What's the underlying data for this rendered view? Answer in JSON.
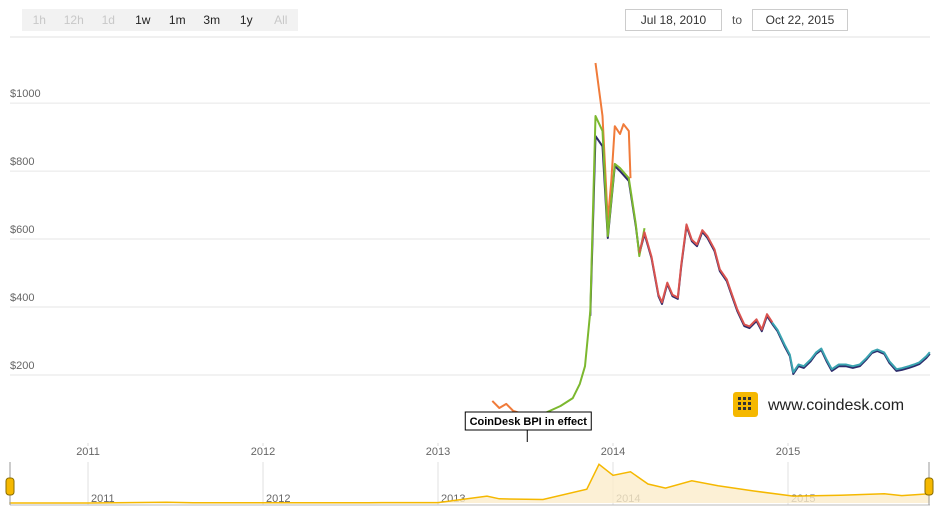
{
  "toolbar": {
    "buttons": [
      {
        "label": "1h",
        "enabled": false
      },
      {
        "label": "12h",
        "enabled": false
      },
      {
        "label": "1d",
        "enabled": false
      },
      {
        "label": "1w",
        "enabled": true
      },
      {
        "label": "1m",
        "enabled": true
      },
      {
        "label": "3m",
        "enabled": true
      },
      {
        "label": "1y",
        "enabled": true
      },
      {
        "label": "All",
        "enabled": false
      }
    ],
    "from": "Jul 18, 2010",
    "to_label": "to",
    "to": "Oct 22, 2015"
  },
  "watermark": "www.coindesk.com",
  "chart_data": [
    {
      "type": "line",
      "xlim": [
        2010.545,
        2015.81
      ],
      "ylim": [
        0,
        1168
      ],
      "grid": true,
      "xticks": [
        2011,
        2012,
        2013,
        2014,
        2015
      ],
      "yticks": [
        {
          "value": 200,
          "label": "$200"
        },
        {
          "value": 400,
          "label": "$400"
        },
        {
          "value": 600,
          "label": "$600"
        },
        {
          "value": 800,
          "label": "$800"
        },
        {
          "value": 1000,
          "label": "$1000"
        }
      ],
      "annotations": [
        {
          "text": "CoinDesk BPI in effect",
          "x": 2013.51
        }
      ],
      "series": [
        {
          "color": "#f07b3a",
          "x": [
            2013.31,
            2013.35,
            2013.39,
            2013.43,
            2013.47,
            2013.5,
            2013.9,
            2013.94,
            2013.97,
            2013.99,
            2014.01,
            2014.04,
            2014.06,
            2014.09,
            2014.1
          ],
          "values": [
            124,
            103,
            115,
            94,
            88,
            null,
            1118,
            962,
            653,
            771,
            932,
            909,
            938,
            918,
            779
          ]
        },
        {
          "color": "#2d2b6b",
          "x": [
            2013.87,
            2013.9,
            2013.94,
            2013.97,
            2014.01,
            2014.04,
            2014.09,
            2014.13,
            2014.15,
            2014.18,
            2014.22,
            2014.26,
            2014.28,
            2014.31,
            2014.34,
            2014.37,
            2014.39,
            2014.42,
            2014.45,
            2014.48,
            2014.51,
            2014.54,
            2014.58,
            2014.61,
            2014.65,
            2014.68,
            2014.71,
            2014.75,
            2014.78,
            2014.82,
            2014.85,
            2014.88,
            2014.91,
            2014.94,
            2014.98,
            2015.01,
            2015.03,
            2015.06,
            2015.09,
            2015.13,
            2015.16,
            2015.19,
            2015.22,
            2015.25,
            2015.29,
            2015.33,
            2015.37,
            2015.41,
            2015.45,
            2015.48,
            2015.51,
            2015.55,
            2015.58,
            2015.62,
            2015.65,
            2015.69,
            2015.72,
            2015.75,
            2015.79,
            2015.81
          ],
          "values": [
            374,
            903,
            873,
            603,
            815,
            800,
            771,
            638,
            556,
            615,
            544,
            432,
            409,
            468,
            432,
            424,
            521,
            638,
            594,
            579,
            621,
            603,
            565,
            506,
            476,
            432,
            388,
            344,
            338,
            359,
            329,
            374,
            350,
            329,
            285,
            256,
            203,
            226,
            221,
            241,
            262,
            274,
            241,
            212,
            226,
            226,
            221,
            226,
            247,
            265,
            271,
            262,
            235,
            212,
            215,
            221,
            226,
            232,
            250,
            262
          ]
        },
        {
          "color": "#7cb82f",
          "x": [
            2013.53,
            2013.61,
            2013.7,
            2013.77,
            2013.81,
            2013.84,
            2013.87,
            2013.9,
            2013.94,
            2013.97,
            2014.01,
            2014.04,
            2014.09,
            2014.13,
            2014.15,
            2014.18
          ],
          "values": [
            79,
            88,
            109,
            132,
            174,
            226,
            388,
            962,
            918,
            609,
            821,
            809,
            779,
            644,
            550,
            632
          ]
        },
        {
          "color": "#d9534f",
          "x": [
            2014.15,
            2014.18,
            2014.22,
            2014.26,
            2014.28,
            2014.31,
            2014.34,
            2014.37,
            2014.39,
            2014.42,
            2014.45,
            2014.48,
            2014.51,
            2014.54,
            2014.58,
            2014.61,
            2014.65,
            2014.68,
            2014.71,
            2014.75,
            2014.78,
            2014.82,
            2014.85,
            2014.88,
            2014.91
          ],
          "values": [
            560,
            620,
            548,
            436,
            414,
            472,
            436,
            428,
            526,
            643,
            598,
            584,
            626,
            608,
            570,
            511,
            481,
            437,
            393,
            349,
            343,
            364,
            334,
            379,
            355
          ]
        },
        {
          "color": "#3aa3b0",
          "x": [
            2014.91,
            2014.94,
            2014.98,
            2015.01,
            2015.03,
            2015.06,
            2015.09,
            2015.13,
            2015.16,
            2015.19,
            2015.22,
            2015.25,
            2015.29,
            2015.33,
            2015.37,
            2015.41,
            2015.45,
            2015.48,
            2015.51,
            2015.55,
            2015.58,
            2015.62,
            2015.65,
            2015.69,
            2015.72,
            2015.75,
            2015.79,
            2015.81
          ],
          "values": [
            354,
            333,
            290,
            260,
            208,
            231,
            226,
            246,
            266,
            278,
            246,
            217,
            231,
            231,
            226,
            231,
            251,
            269,
            275,
            266,
            240,
            217,
            220,
            226,
            231,
            237,
            255,
            267
          ]
        }
      ]
    },
    {
      "type": "area",
      "xlim": [
        2010.545,
        2015.81
      ],
      "ylim": [
        0,
        1300
      ],
      "color": "#f5b800",
      "fill": "#fbeccb",
      "xticks": [
        2011,
        2012,
        2013,
        2014,
        2015
      ],
      "x": [
        2010.55,
        2011.0,
        2011.45,
        2011.6,
        2012.0,
        2012.6,
        2013.0,
        2013.28,
        2013.35,
        2013.6,
        2013.85,
        2013.92,
        2014.0,
        2014.1,
        2014.2,
        2014.3,
        2014.45,
        2014.6,
        2014.8,
        2015.03,
        2015.3,
        2015.55,
        2015.65,
        2015.81
      ],
      "values": [
        0.07,
        0.3,
        20,
        10,
        5,
        10,
        13,
        200,
        120,
        100,
        400,
        1118,
        800,
        900,
        550,
        430,
        640,
        500,
        350,
        200,
        225,
        270,
        215,
        265
      ]
    }
  ]
}
